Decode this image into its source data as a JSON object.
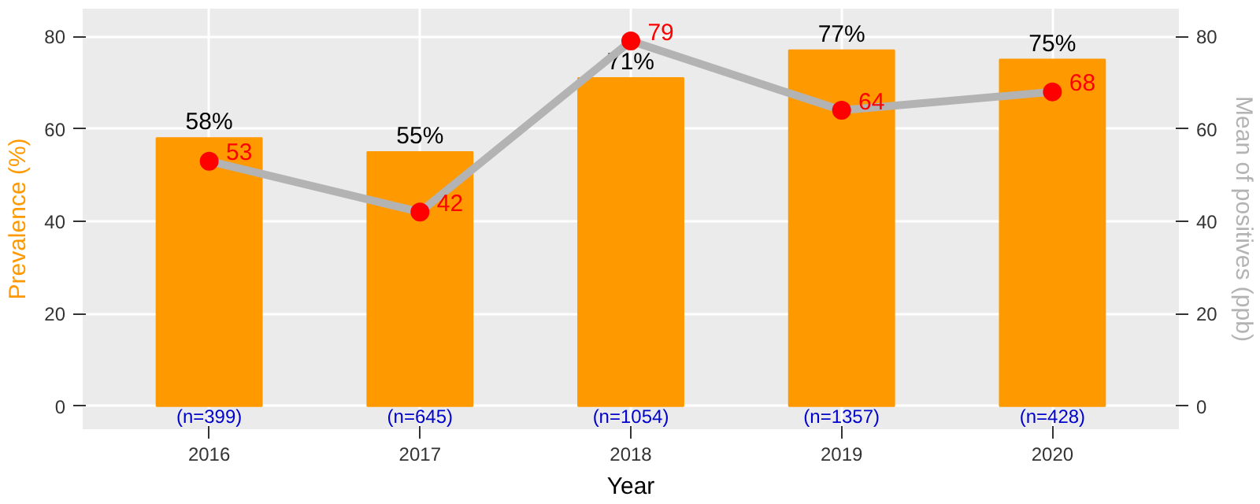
{
  "chart_data": {
    "type": "bar",
    "xlabel": "Year",
    "ylabel": "Prevalence (%)",
    "y2label": "Mean of positives (ppb)",
    "categories": [
      "2016",
      "2017",
      "2018",
      "2019",
      "2020"
    ],
    "ylim": [
      -5,
      86
    ],
    "yticks": [
      0,
      20,
      40,
      60,
      80
    ],
    "y2lim": [
      -5,
      86
    ],
    "y2ticks": [
      0,
      20,
      40,
      60,
      80
    ],
    "grid": true,
    "series": [
      {
        "color": "#ff9900",
        "values": [
          58,
          55,
          71,
          77,
          75
        ],
        "value_labels": [
          "58%",
          "55%",
          "71%",
          "77%",
          "75%"
        ]
      },
      {
        "type": "line",
        "axis": "y2",
        "color": "#b3b3b3",
        "colors": [
          "#ff0000",
          "#ff0000",
          "#ff0000",
          "#ff0000",
          "#ff0000"
        ],
        "marker": "circle",
        "values": [
          53,
          42,
          79,
          64,
          68
        ],
        "value_labels": [
          "53",
          "42",
          "79",
          "64",
          "68"
        ]
      }
    ],
    "annotations": [
      {
        "text": "(n=399)",
        "x": "2016",
        "y": 0
      },
      {
        "text": "(n=645)",
        "x": "2017",
        "y": 0
      },
      {
        "text": "(n=1054)",
        "x": "2018",
        "y": 0
      },
      {
        "text": "(n=1357)",
        "x": "2019",
        "y": 0
      },
      {
        "text": "(n=428)",
        "x": "2020",
        "y": 0
      }
    ]
  }
}
